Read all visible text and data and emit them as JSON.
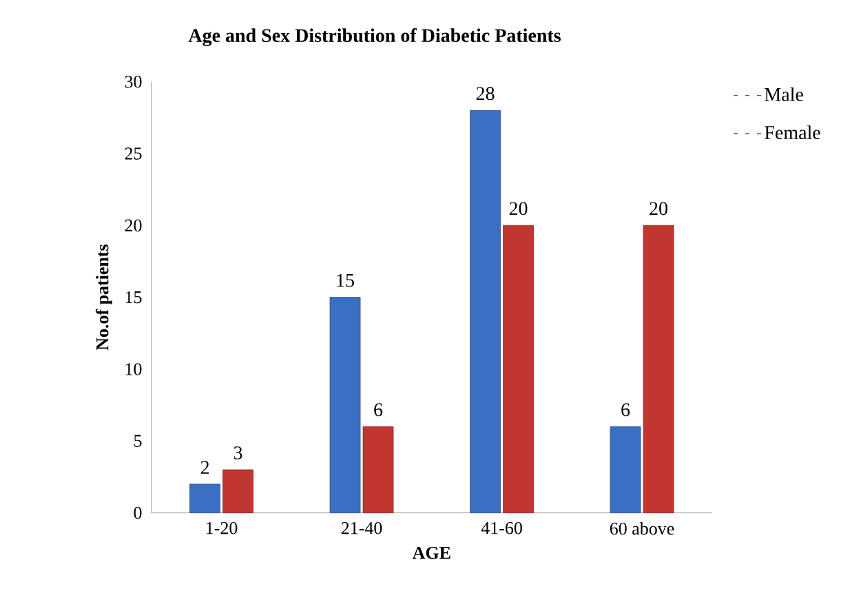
{
  "chart_data": {
    "type": "bar",
    "title": "Age and Sex Distribution of Diabetic Patients",
    "xlabel": "AGE",
    "ylabel": "No.of patients",
    "categories": [
      "1-20",
      "21-40",
      "41-60",
      "60 above"
    ],
    "series": [
      {
        "name": "Male",
        "color": "#3a6fc4",
        "values": [
          2,
          15,
          28,
          6
        ]
      },
      {
        "name": "Female",
        "color": "#c23631",
        "values": [
          3,
          6,
          20,
          20
        ]
      }
    ],
    "ylim": [
      0,
      30
    ],
    "yticks": [
      0,
      5,
      10,
      15,
      20,
      25,
      30
    ],
    "data_labels": true,
    "legend": "top right"
  }
}
